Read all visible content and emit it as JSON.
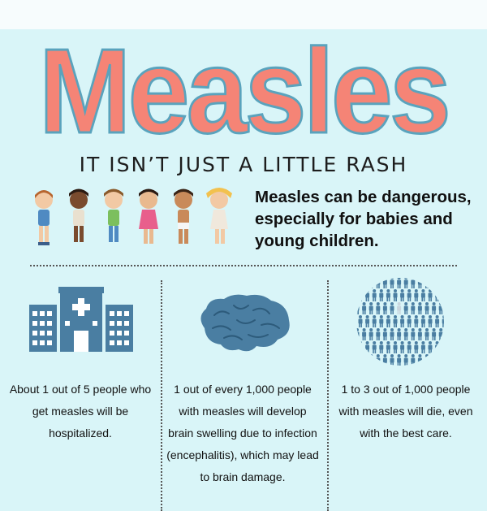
{
  "title": "Measles",
  "subtitle": "IT ISN’T JUST A LITTLE RASH",
  "warning": "Measles can be dangerous, especially for babies and young children.",
  "colors": {
    "background": "#d9f5f8",
    "title_fill": "#f58476",
    "title_outline": "#5aa3bd",
    "icon_blue": "#4a7ea2"
  },
  "stats": [
    {
      "icon": "hospital-icon",
      "text": "About 1 out of 5 people who get measles will be hospitalized."
    },
    {
      "icon": "brain-icon",
      "text": "1 out of every 1,000 people with measles will develop brain swelling due to infection (encephalitis), which may lead to brain damage."
    },
    {
      "icon": "crowd-icon",
      "text": "1 to 3 out of 1,000 people with measles will die, even with the best care."
    }
  ]
}
